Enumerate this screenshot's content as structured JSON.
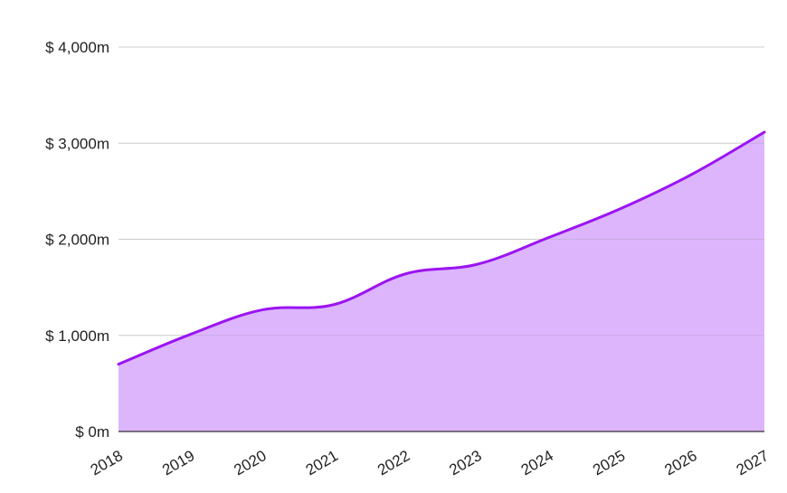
{
  "chart_data": {
    "type": "area",
    "title": "",
    "xlabel": "",
    "ylabel": "",
    "categories": [
      "2018",
      "2019",
      "2020",
      "2021",
      "2022",
      "2023",
      "2024",
      "2025",
      "2026",
      "2027"
    ],
    "series": [
      {
        "values": [
          700,
          1010,
          1265,
          1320,
          1640,
          1740,
          2020,
          2320,
          2680,
          3115
        ],
        "line_color": "#9B14F2",
        "fill_color": "#DDB5FD"
      }
    ],
    "ylim": [
      0,
      4000
    ],
    "yticks": [
      {
        "value": 0,
        "label": "$ 0m"
      },
      {
        "value": 1000,
        "label": "$ 1,000m"
      },
      {
        "value": 2000,
        "label": "$ 2,000m"
      },
      {
        "value": 3000,
        "label": "$ 3,000m"
      },
      {
        "value": 4000,
        "label": "$ 4,000m"
      }
    ],
    "grid": true,
    "legend": "none"
  }
}
